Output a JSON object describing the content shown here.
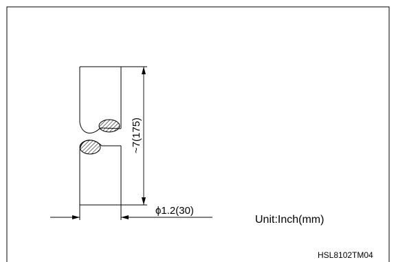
{
  "diagram": {
    "length_dimension": "~7(175)",
    "diameter_dimension": "ϕ1.2(30)",
    "unit_note": "Unit:Inch(mm)",
    "figure_code": "HSL8102TM04"
  }
}
